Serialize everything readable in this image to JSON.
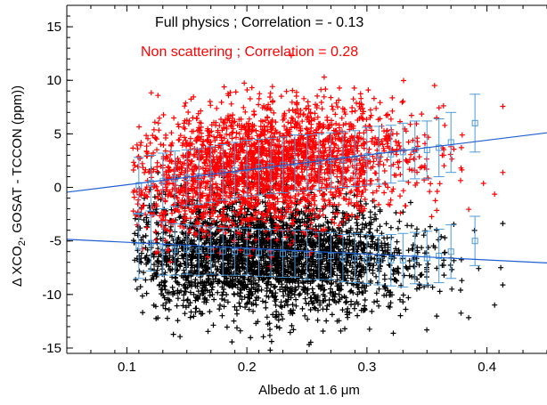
{
  "chart_data": {
    "type": "scatter",
    "xlabel": "Albedo at 1.6 μm",
    "xlabel_parts": {
      "text": "Albedo at 1.6 ",
      "greek": "μ",
      "unit": "m"
    },
    "ylabel_parts": {
      "delta": "Δ XCO",
      "subscript": "2",
      "rest": ", GOSAT - TCCON (ppm))"
    },
    "xlim": [
      0.05,
      0.45
    ],
    "ylim": [
      -15.5,
      17
    ],
    "x_ticks": [
      0.1,
      0.2,
      0.3,
      0.4
    ],
    "x_tick_labels": [
      "0.1",
      "0.2",
      "0.3",
      "0.4"
    ],
    "y_ticks": [
      -15,
      -10,
      -5,
      0,
      5,
      10,
      15
    ],
    "y_tick_labels": [
      "-15",
      "-10",
      "-5",
      "0",
      "5",
      "10",
      "15"
    ],
    "grid": false,
    "legend_placement": "top-center",
    "series": [
      {
        "name": "Full physics",
        "color": "#000000",
        "correlation_text": "Full physics ; Correlation = - 0.13",
        "marker": "plus",
        "approx_point_count": 3000,
        "cloud_center_curve": [
          [
            0.11,
            -6.0
          ],
          [
            0.2,
            -6.3
          ],
          [
            0.3,
            -6.8
          ],
          [
            0.4,
            -6.5
          ]
        ],
        "cloud_spread_sd": 2.6,
        "binned_means": [
          {
            "x": 0.11,
            "y": -5.5,
            "err": 3.0
          },
          {
            "x": 0.12,
            "y": -5.2,
            "err": 2.6
          },
          {
            "x": 0.13,
            "y": -5.7,
            "err": 2.5
          },
          {
            "x": 0.14,
            "y": -5.8,
            "err": 2.4
          },
          {
            "x": 0.15,
            "y": -5.8,
            "err": 2.3
          },
          {
            "x": 0.16,
            "y": -5.9,
            "err": 2.3
          },
          {
            "x": 0.17,
            "y": -5.9,
            "err": 2.2
          },
          {
            "x": 0.18,
            "y": -6.0,
            "err": 2.2
          },
          {
            "x": 0.19,
            "y": -6.0,
            "err": 2.2
          },
          {
            "x": 0.2,
            "y": -6.0,
            "err": 2.2
          },
          {
            "x": 0.21,
            "y": -6.1,
            "err": 2.2
          },
          {
            "x": 0.22,
            "y": -6.1,
            "err": 2.2
          },
          {
            "x": 0.23,
            "y": -6.2,
            "err": 2.2
          },
          {
            "x": 0.24,
            "y": -6.2,
            "err": 2.2
          },
          {
            "x": 0.25,
            "y": -6.3,
            "err": 2.3
          },
          {
            "x": 0.26,
            "y": -6.4,
            "err": 2.2
          },
          {
            "x": 0.27,
            "y": -6.4,
            "err": 2.2
          },
          {
            "x": 0.28,
            "y": -6.6,
            "err": 2.2
          },
          {
            "x": 0.29,
            "y": -6.6,
            "err": 2.3
          },
          {
            "x": 0.3,
            "y": -6.7,
            "err": 2.3
          },
          {
            "x": 0.31,
            "y": -6.8,
            "err": 2.3
          },
          {
            "x": 0.32,
            "y": -6.8,
            "err": 2.4
          },
          {
            "x": 0.33,
            "y": -6.8,
            "err": 2.5
          },
          {
            "x": 0.34,
            "y": -6.6,
            "err": 2.4
          },
          {
            "x": 0.35,
            "y": -6.6,
            "err": 2.5
          },
          {
            "x": 0.36,
            "y": -6.4,
            "err": 2.5
          },
          {
            "x": 0.37,
            "y": -6.0,
            "err": 2.5
          },
          {
            "x": 0.39,
            "y": -5.0,
            "err": 2.3
          }
        ],
        "fit_line": [
          [
            0.05,
            -4.85
          ],
          [
            0.45,
            -7.05
          ]
        ]
      },
      {
        "name": "Non scattering",
        "color": "#ff0000",
        "correlation_text": "Non scattering ; Correlation = 0.28",
        "marker": "plus",
        "approx_point_count": 3000,
        "cloud_center_curve": [
          [
            0.11,
            0.3
          ],
          [
            0.2,
            1.9
          ],
          [
            0.3,
            2.9
          ],
          [
            0.4,
            4.2
          ]
        ],
        "cloud_spread_sd": 2.8,
        "binned_means": [
          {
            "x": 0.11,
            "y": 0.2,
            "err": 2.6
          },
          {
            "x": 0.12,
            "y": 0.4,
            "err": 2.6
          },
          {
            "x": 0.13,
            "y": 0.6,
            "err": 2.6
          },
          {
            "x": 0.14,
            "y": 0.8,
            "err": 2.6
          },
          {
            "x": 0.15,
            "y": 0.9,
            "err": 2.6
          },
          {
            "x": 0.16,
            "y": 1.0,
            "err": 2.6
          },
          {
            "x": 0.17,
            "y": 1.2,
            "err": 2.6
          },
          {
            "x": 0.18,
            "y": 1.4,
            "err": 2.6
          },
          {
            "x": 0.19,
            "y": 1.6,
            "err": 2.6
          },
          {
            "x": 0.2,
            "y": 1.8,
            "err": 2.6
          },
          {
            "x": 0.21,
            "y": 1.9,
            "err": 2.6
          },
          {
            "x": 0.22,
            "y": 2.0,
            "err": 2.6
          },
          {
            "x": 0.23,
            "y": 2.1,
            "err": 2.6
          },
          {
            "x": 0.24,
            "y": 2.3,
            "err": 2.6
          },
          {
            "x": 0.25,
            "y": 2.3,
            "err": 2.6
          },
          {
            "x": 0.26,
            "y": 2.4,
            "err": 2.6
          },
          {
            "x": 0.27,
            "y": 2.5,
            "err": 2.6
          },
          {
            "x": 0.28,
            "y": 2.6,
            "err": 2.6
          },
          {
            "x": 0.29,
            "y": 2.7,
            "err": 2.6
          },
          {
            "x": 0.3,
            "y": 2.9,
            "err": 2.7
          },
          {
            "x": 0.31,
            "y": 3.0,
            "err": 2.7
          },
          {
            "x": 0.32,
            "y": 3.1,
            "err": 2.7
          },
          {
            "x": 0.33,
            "y": 3.3,
            "err": 2.7
          },
          {
            "x": 0.34,
            "y": 3.5,
            "err": 2.7
          },
          {
            "x": 0.35,
            "y": 3.5,
            "err": 2.7
          },
          {
            "x": 0.36,
            "y": 3.7,
            "err": 2.7
          },
          {
            "x": 0.37,
            "y": 4.2,
            "err": 2.8
          },
          {
            "x": 0.39,
            "y": 6.0,
            "err": 2.7
          }
        ],
        "fit_line": [
          [
            0.05,
            -0.45
          ],
          [
            0.45,
            5.1
          ]
        ]
      }
    ],
    "colors": {
      "fit_line": "#1f5fd1",
      "error_bars": "#4a9ad9",
      "axes": "#000000"
    }
  }
}
